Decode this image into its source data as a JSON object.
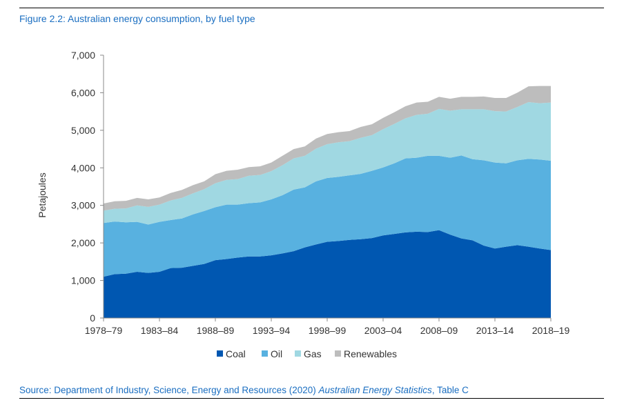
{
  "figure": {
    "title": "Figure 2.2: Australian energy consumption, by fuel type",
    "source_prefix": "Source: Department of Industry, Science, Energy and Resources (2020) ",
    "source_italic": "Australian Energy Statistics",
    "source_suffix": ", Table C"
  },
  "chart_data": {
    "type": "area",
    "stacked": true,
    "ylabel": "Petajoules",
    "xlabel": "",
    "ylim": [
      0,
      7000
    ],
    "yticks": [
      0,
      1000,
      2000,
      3000,
      4000,
      5000,
      6000,
      7000
    ],
    "ytick_labels": [
      "0",
      "1,000",
      "2,000",
      "3,000",
      "4,000",
      "5,000",
      "6,000",
      "7,000"
    ],
    "x": [
      "1978–79",
      "1979–80",
      "1980–81",
      "1981–82",
      "1982–83",
      "1983–84",
      "1984–85",
      "1985–86",
      "1986–87",
      "1987–88",
      "1988–89",
      "1989–90",
      "1990–91",
      "1991–92",
      "1992–93",
      "1993–94",
      "1994–95",
      "1995–96",
      "1996–97",
      "1997–98",
      "1998–99",
      "1999–00",
      "2000–01",
      "2001–02",
      "2002–03",
      "2003–04",
      "2004–05",
      "2005–06",
      "2006–07",
      "2007–08",
      "2008–09",
      "2009–10",
      "2010–11",
      "2011–12",
      "2012–13",
      "2013–14",
      "2014–15",
      "2015–16",
      "2016–17",
      "2017–18",
      "2018–19"
    ],
    "xtick_labels": [
      "1978–79",
      "1983–84",
      "1988–89",
      "1993–94",
      "1998–99",
      "2003–04",
      "2008–09",
      "2013–14",
      "2018–19"
    ],
    "legend_position": "bottom-center",
    "grid": false,
    "series": [
      {
        "name": "Coal",
        "color": "#0057b1",
        "values": [
          1100,
          1170,
          1180,
          1230,
          1200,
          1230,
          1330,
          1340,
          1390,
          1440,
          1540,
          1570,
          1610,
          1640,
          1640,
          1670,
          1720,
          1780,
          1880,
          1960,
          2030,
          2050,
          2080,
          2100,
          2130,
          2200,
          2240,
          2280,
          2300,
          2290,
          2340,
          2220,
          2120,
          2070,
          1930,
          1850,
          1900,
          1940,
          1900,
          1850,
          1810
        ]
      },
      {
        "name": "Oil",
        "color": "#58b1e0",
        "values": [
          1430,
          1400,
          1370,
          1330,
          1290,
          1330,
          1280,
          1310,
          1370,
          1410,
          1410,
          1450,
          1410,
          1420,
          1440,
          1490,
          1550,
          1640,
          1600,
          1680,
          1700,
          1710,
          1720,
          1740,
          1790,
          1810,
          1880,
          1970,
          1970,
          2030,
          1980,
          2050,
          2210,
          2160,
          2270,
          2290,
          2220,
          2260,
          2340,
          2370,
          2380
        ]
      },
      {
        "name": "Gas",
        "color": "#a0d8e2",
        "values": [
          330,
          340,
          370,
          440,
          470,
          460,
          520,
          550,
          560,
          580,
          640,
          660,
          680,
          730,
          730,
          750,
          800,
          830,
          840,
          870,
          900,
          920,
          910,
          960,
          950,
          1020,
          1050,
          1070,
          1140,
          1120,
          1250,
          1250,
          1230,
          1330,
          1360,
          1370,
          1380,
          1420,
          1510,
          1500,
          1550
        ]
      },
      {
        "name": "Renewables",
        "color": "#bdbdbd",
        "values": [
          190,
          200,
          200,
          200,
          200,
          190,
          200,
          210,
          220,
          210,
          240,
          240,
          250,
          230,
          230,
          230,
          250,
          250,
          250,
          270,
          270,
          270,
          270,
          290,
          290,
          300,
          310,
          320,
          330,
          320,
          320,
          320,
          330,
          330,
          340,
          350,
          360,
          380,
          420,
          460,
          440
        ]
      }
    ]
  }
}
